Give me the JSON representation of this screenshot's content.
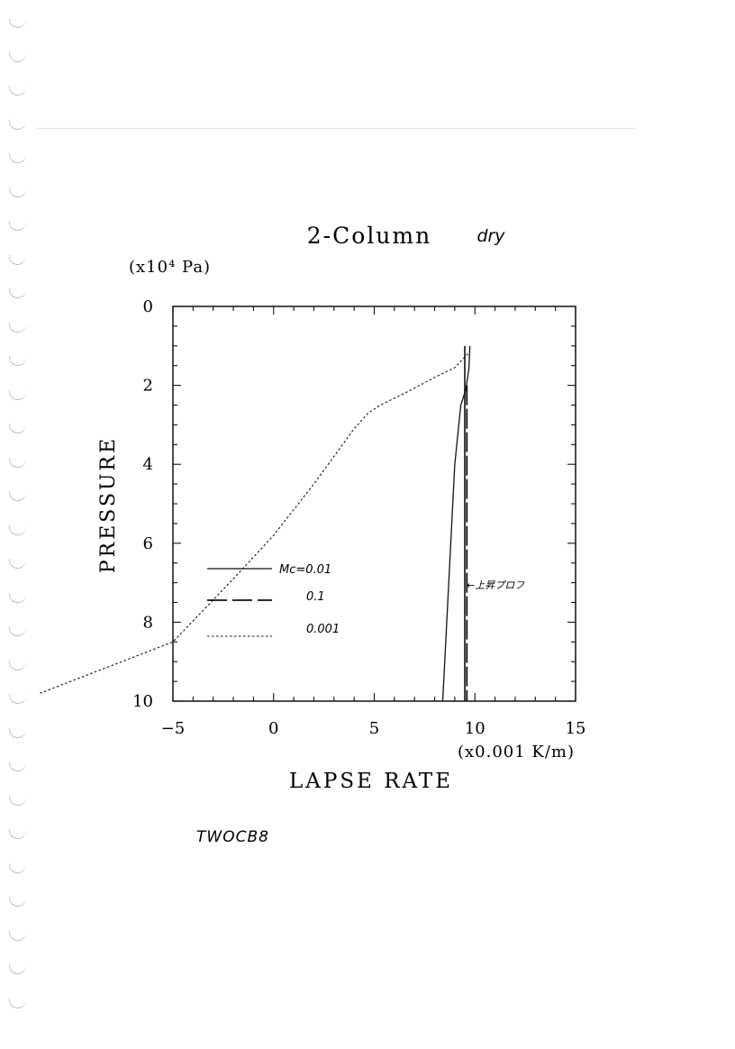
{
  "chart_data": {
    "type": "line",
    "title": "2-Column",
    "title_annotation": "dry",
    "y_unit_label": "(x10⁴ Pa)",
    "ylabel": "PRESSURE",
    "xlabel": "LAPSE RATE",
    "x_unit_label": "(x0.001 K/m)",
    "xlim": [
      -5,
      15
    ],
    "ylim": [
      0,
      10
    ],
    "y_inverted": true,
    "x_ticks": [
      "−5",
      "0",
      "5",
      "10",
      "15"
    ],
    "y_ticks": [
      "0",
      "2",
      "4",
      "6",
      "8",
      "10"
    ],
    "grid": false,
    "legend_position": "center-left",
    "series": [
      {
        "name": "Mc=0.01",
        "style": "solid",
        "points": [
          [
            9.75,
            1.0
          ],
          [
            9.7,
            1.6
          ],
          [
            9.55,
            2.1
          ],
          [
            9.3,
            2.5
          ],
          [
            9.0,
            4.0
          ],
          [
            8.4,
            10.0
          ]
        ]
      },
      {
        "name": "0.1",
        "style": "long-dash",
        "points": [
          [
            9.6,
            2.0
          ],
          [
            9.6,
            10.0
          ]
        ]
      },
      {
        "name": "0.001",
        "style": "dotted",
        "points": [
          [
            9.65,
            1.2
          ],
          [
            9.0,
            1.55
          ],
          [
            8.0,
            1.8
          ],
          [
            6.5,
            2.2
          ],
          [
            5.3,
            2.5
          ],
          [
            4.7,
            2.7
          ],
          [
            4.0,
            3.1
          ],
          [
            3.0,
            3.8
          ],
          [
            2.0,
            4.5
          ],
          [
            0.0,
            5.8
          ],
          [
            -2.0,
            6.9
          ],
          [
            -3.5,
            7.7
          ],
          [
            -5.0,
            8.5
          ],
          [
            -11.6,
            9.8
          ]
        ]
      }
    ],
    "annotations": [
      {
        "text": "←上昇プロフ",
        "x": 9.8,
        "y": 7.1
      }
    ]
  },
  "footer_code": "TWOCB8",
  "colors": {
    "ink": "#111111",
    "paper": "#ffffff",
    "hole": "#bbbbbb"
  }
}
